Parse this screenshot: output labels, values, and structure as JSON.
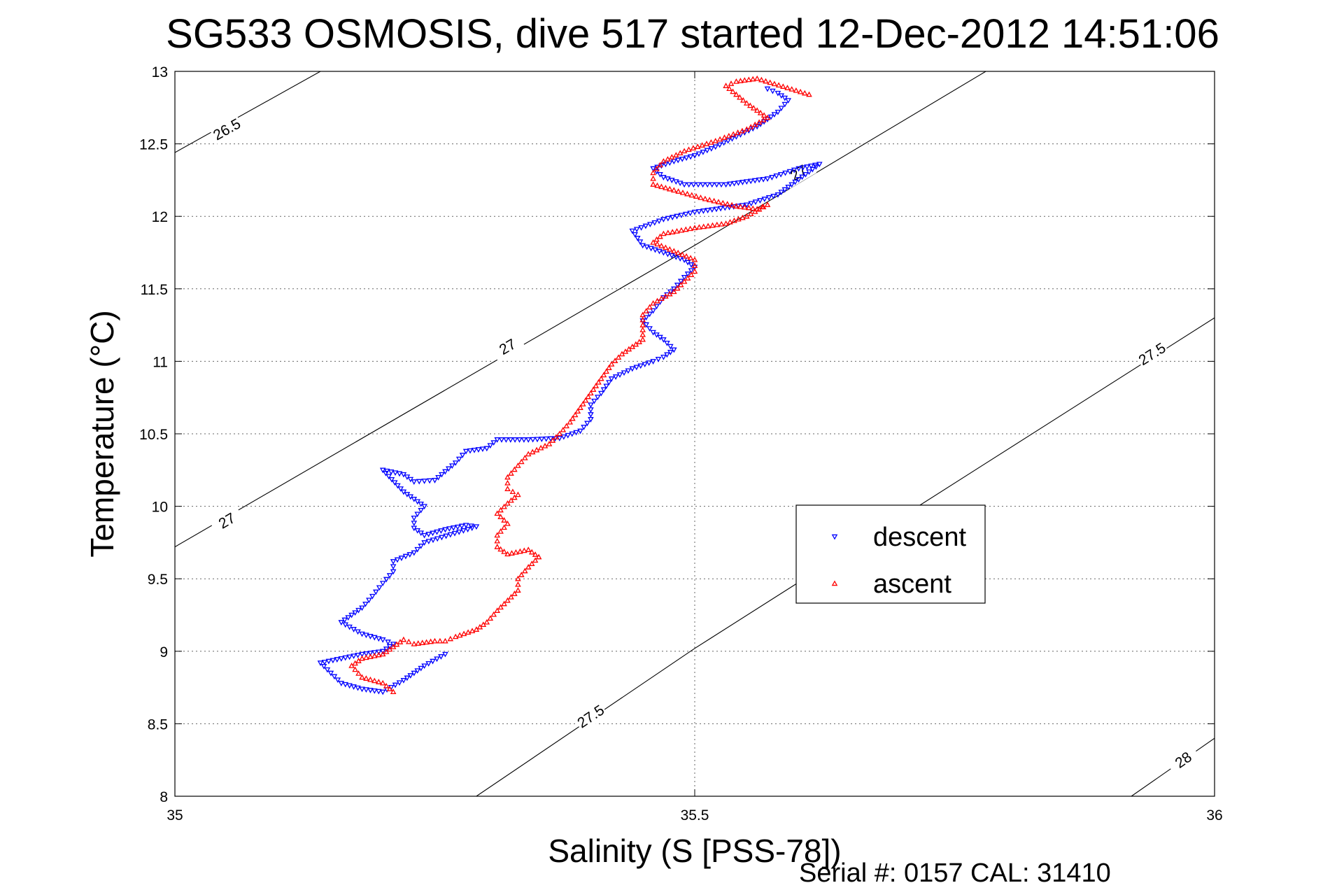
{
  "title": "SG533 OSMOSIS, dive 517 started 12-Dec-2012 14:51:06",
  "footer": "Serial #: 0157  CAL: 31410",
  "chart_data": {
    "type": "scatter",
    "title": "SG533 OSMOSIS, dive 517 started 12-Dec-2012 14:51:06",
    "xlabel": "Salinity (S [PSS-78])",
    "ylabel": "Temperature (°C)",
    "xlim": [
      35,
      36
    ],
    "ylim": [
      8,
      13
    ],
    "x_ticks": [
      "35",
      "35.5",
      "36"
    ],
    "y_ticks": [
      "8",
      "8.5",
      "9",
      "9.5",
      "10",
      "10.5",
      "11",
      "11.5",
      "12",
      "12.5",
      "13"
    ],
    "grid": true,
    "legend_position": "center-right",
    "contours": [
      {
        "label": "26.5",
        "points": [
          [
            35.0,
            12.44
          ],
          [
            35.14,
            13.0
          ]
        ],
        "label_at": [
          35.05,
          12.6
        ]
      },
      {
        "label": "27",
        "points": [
          [
            35.0,
            9.72
          ],
          [
            35.5,
            11.8
          ],
          [
            35.78,
            13.0
          ]
        ],
        "label_at": [
          [
            35.05,
            9.9
          ],
          [
            35.32,
            11.1
          ],
          [
            35.6,
            12.3
          ]
        ]
      },
      {
        "label": "27.5",
        "points": [
          [
            35.29,
            8.0
          ],
          [
            35.5,
            9.02
          ],
          [
            36.0,
            11.3
          ]
        ],
        "label_at": [
          [
            35.4,
            8.55
          ],
          [
            35.94,
            11.05
          ]
        ]
      },
      {
        "label": "28",
        "points": [
          [
            35.92,
            8.0
          ],
          [
            36.0,
            8.4
          ]
        ],
        "label_at": [
          35.97,
          8.25
        ]
      }
    ],
    "series": [
      {
        "name": "descent",
        "color": "#0000ff",
        "marker": "triangle-down",
        "points": [
          [
            35.57,
            12.88
          ],
          [
            35.58,
            12.85
          ],
          [
            35.59,
            12.8
          ],
          [
            35.58,
            12.72
          ],
          [
            35.56,
            12.62
          ],
          [
            35.54,
            12.55
          ],
          [
            35.52,
            12.48
          ],
          [
            35.5,
            12.42
          ],
          [
            35.48,
            12.38
          ],
          [
            35.46,
            12.33
          ],
          [
            35.47,
            12.27
          ],
          [
            35.49,
            12.22
          ],
          [
            35.53,
            12.22
          ],
          [
            35.57,
            12.26
          ],
          [
            35.6,
            12.33
          ],
          [
            35.62,
            12.36
          ],
          [
            35.58,
            12.15
          ],
          [
            35.55,
            12.08
          ],
          [
            35.5,
            12.03
          ],
          [
            35.47,
            11.98
          ],
          [
            35.44,
            11.9
          ],
          [
            35.45,
            11.8
          ],
          [
            35.47,
            11.75
          ],
          [
            35.49,
            11.7
          ],
          [
            35.5,
            11.65
          ],
          [
            35.49,
            11.58
          ],
          [
            35.48,
            11.5
          ],
          [
            35.47,
            11.44
          ],
          [
            35.46,
            11.35
          ],
          [
            35.45,
            11.28
          ],
          [
            35.46,
            11.2
          ],
          [
            35.47,
            11.15
          ],
          [
            35.48,
            11.08
          ],
          [
            35.47,
            11.03
          ],
          [
            35.46,
            11.0
          ],
          [
            35.44,
            10.95
          ],
          [
            35.42,
            10.88
          ],
          [
            35.41,
            10.78
          ],
          [
            35.4,
            10.7
          ],
          [
            35.4,
            10.6
          ],
          [
            35.39,
            10.52
          ],
          [
            35.37,
            10.47
          ],
          [
            35.34,
            10.46
          ],
          [
            35.31,
            10.46
          ],
          [
            35.3,
            10.4
          ],
          [
            35.28,
            10.38
          ],
          [
            35.27,
            10.3
          ],
          [
            35.26,
            10.24
          ],
          [
            35.25,
            10.18
          ],
          [
            35.23,
            10.17
          ],
          [
            35.22,
            10.22
          ],
          [
            35.2,
            10.25
          ],
          [
            35.22,
            10.1
          ],
          [
            35.23,
            10.05
          ],
          [
            35.24,
            10.0
          ],
          [
            35.23,
            9.92
          ],
          [
            35.23,
            9.85
          ],
          [
            35.24,
            9.8
          ],
          [
            35.26,
            9.84
          ],
          [
            35.28,
            9.87
          ],
          [
            35.29,
            9.86
          ],
          [
            35.24,
            9.75
          ],
          [
            35.23,
            9.68
          ],
          [
            35.21,
            9.62
          ],
          [
            35.21,
            9.55
          ],
          [
            35.2,
            9.47
          ],
          [
            35.19,
            9.38
          ],
          [
            35.18,
            9.3
          ],
          [
            35.16,
            9.2
          ],
          [
            35.18,
            9.12
          ],
          [
            35.2,
            9.08
          ],
          [
            35.21,
            9.05
          ],
          [
            35.2,
            9.0
          ],
          [
            35.18,
            8.98
          ],
          [
            35.16,
            8.95
          ],
          [
            35.14,
            8.92
          ],
          [
            35.15,
            8.85
          ],
          [
            35.16,
            8.78
          ],
          [
            35.18,
            8.74
          ],
          [
            35.2,
            8.72
          ],
          [
            35.22,
            8.8
          ],
          [
            35.24,
            8.9
          ],
          [
            35.26,
            8.98
          ]
        ]
      },
      {
        "name": "ascent",
        "color": "#ff0000",
        "marker": "triangle-up",
        "points": [
          [
            35.61,
            12.84
          ],
          [
            35.56,
            12.95
          ],
          [
            35.54,
            12.93
          ],
          [
            35.53,
            12.9
          ],
          [
            35.55,
            12.78
          ],
          [
            35.57,
            12.68
          ],
          [
            35.55,
            12.6
          ],
          [
            35.52,
            12.52
          ],
          [
            35.49,
            12.45
          ],
          [
            35.47,
            12.38
          ],
          [
            35.46,
            12.3
          ],
          [
            35.46,
            12.22
          ],
          [
            35.48,
            12.18
          ],
          [
            35.51,
            12.12
          ],
          [
            35.54,
            12.07
          ],
          [
            35.56,
            12.05
          ],
          [
            35.57,
            12.08
          ],
          [
            35.55,
            12.0
          ],
          [
            35.53,
            11.95
          ],
          [
            35.5,
            11.92
          ],
          [
            35.47,
            11.88
          ],
          [
            35.46,
            11.82
          ],
          [
            35.48,
            11.76
          ],
          [
            35.5,
            11.7
          ],
          [
            35.5,
            11.62
          ],
          [
            35.49,
            11.55
          ],
          [
            35.48,
            11.48
          ],
          [
            35.46,
            11.4
          ],
          [
            35.45,
            11.32
          ],
          [
            35.45,
            11.25
          ],
          [
            35.45,
            11.15
          ],
          [
            35.44,
            11.1
          ],
          [
            35.43,
            11.05
          ],
          [
            35.42,
            10.98
          ],
          [
            35.41,
            10.88
          ],
          [
            35.4,
            10.78
          ],
          [
            35.39,
            10.68
          ],
          [
            35.38,
            10.58
          ],
          [
            35.37,
            10.5
          ],
          [
            35.36,
            10.43
          ],
          [
            35.34,
            10.36
          ],
          [
            35.33,
            10.28
          ],
          [
            35.32,
            10.2
          ],
          [
            35.32,
            10.12
          ],
          [
            35.33,
            10.08
          ],
          [
            35.32,
            10.02
          ],
          [
            35.31,
            9.95
          ],
          [
            35.32,
            9.88
          ],
          [
            35.31,
            9.8
          ],
          [
            35.31,
            9.72
          ],
          [
            35.32,
            9.67
          ],
          [
            35.34,
            9.7
          ],
          [
            35.35,
            9.65
          ],
          [
            35.34,
            9.58
          ],
          [
            35.33,
            9.5
          ],
          [
            35.33,
            9.42
          ],
          [
            35.32,
            9.35
          ],
          [
            35.31,
            9.28
          ],
          [
            35.3,
            9.2
          ],
          [
            35.29,
            9.15
          ],
          [
            35.27,
            9.1
          ],
          [
            35.26,
            9.07
          ],
          [
            35.25,
            9.07
          ],
          [
            35.23,
            9.05
          ],
          [
            35.22,
            9.08
          ],
          [
            35.21,
            9.03
          ],
          [
            35.2,
            8.98
          ],
          [
            35.18,
            8.95
          ],
          [
            35.17,
            8.9
          ],
          [
            35.18,
            8.82
          ],
          [
            35.2,
            8.78
          ],
          [
            35.21,
            8.72
          ]
        ]
      }
    ]
  }
}
